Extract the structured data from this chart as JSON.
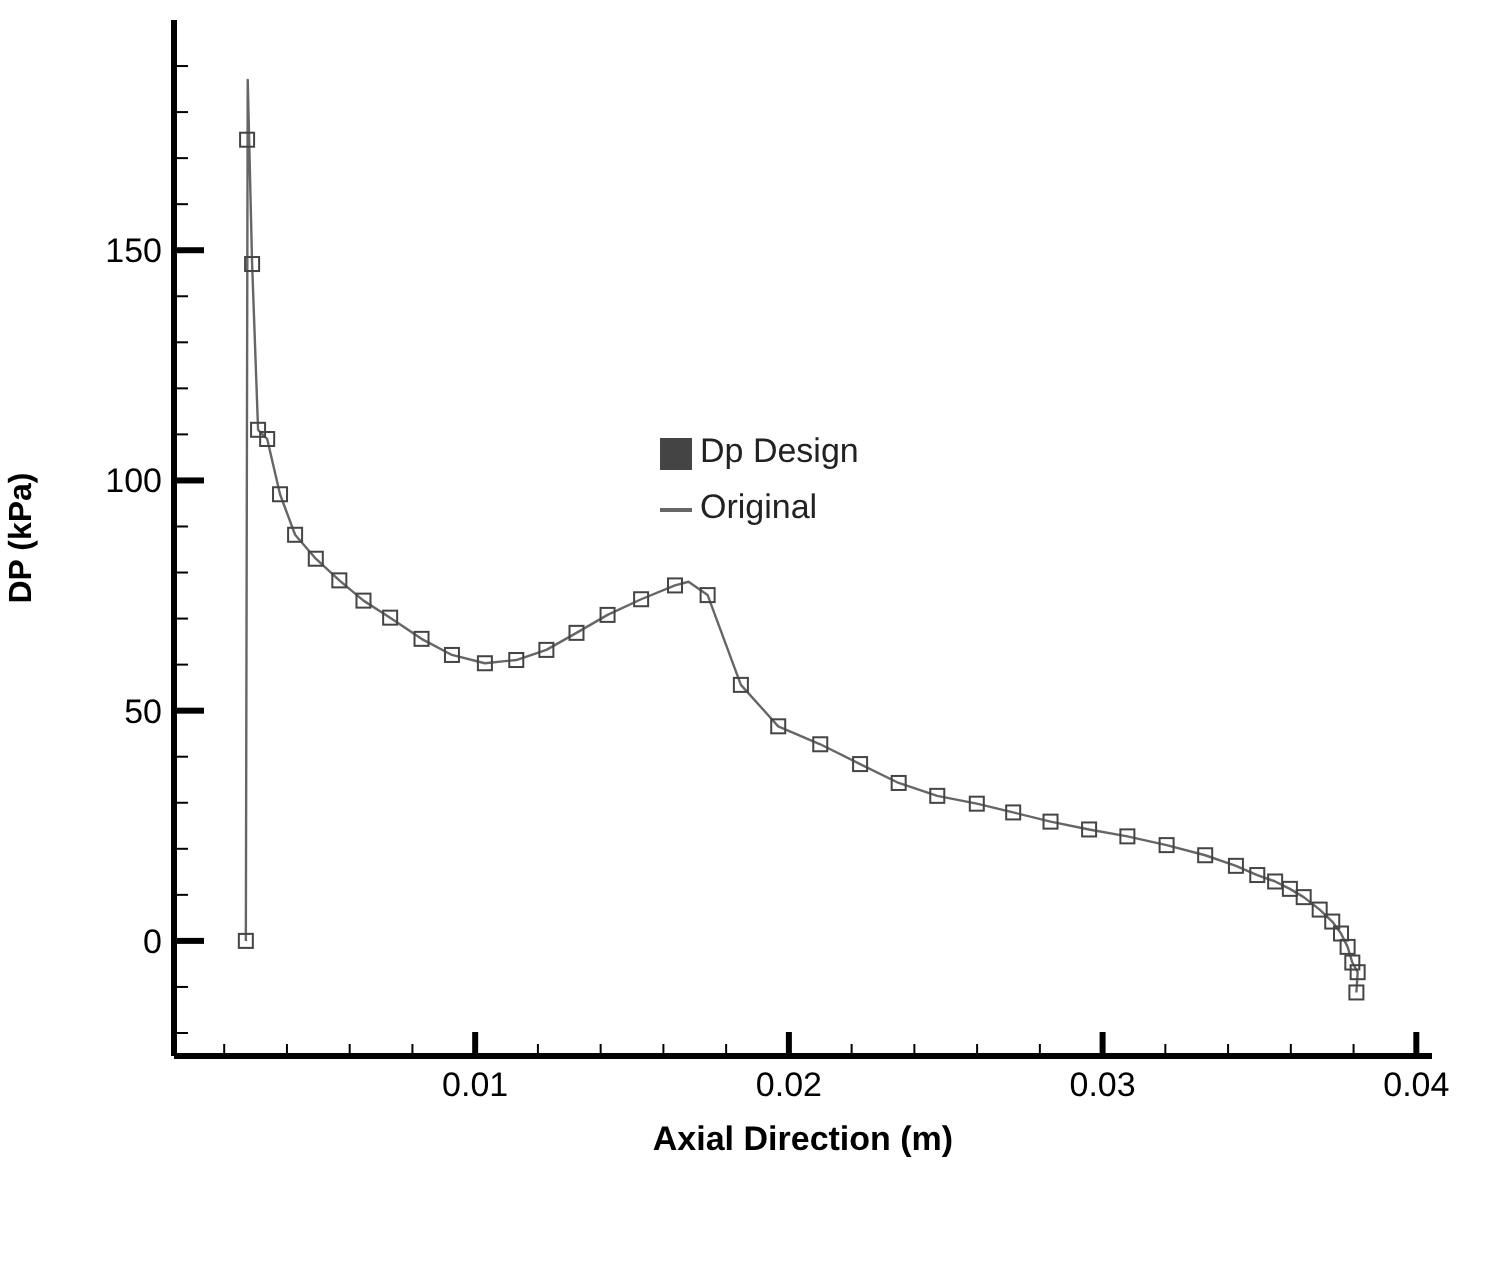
{
  "chart_data": {
    "type": "line",
    "xlabel": "Axial Direction (m)",
    "ylabel": "DP (kPa)",
    "xlim": [
      0.0004,
      0.0405
    ],
    "ylim": [
      -25,
      200
    ],
    "xticks": [
      {
        "value": 0.002,
        "label": null
      },
      {
        "value": 0.004,
        "label": null
      },
      {
        "value": 0.006,
        "label": null
      },
      {
        "value": 0.008,
        "label": null
      },
      0.01,
      {
        "value": 0.012,
        "label": null
      },
      {
        "value": 0.014,
        "label": null
      },
      {
        "value": 0.016,
        "label": null
      },
      {
        "value": 0.018,
        "label": null
      },
      0.02,
      {
        "value": 0.022,
        "label": null
      },
      {
        "value": 0.024,
        "label": null
      },
      {
        "value": 0.026,
        "label": null
      },
      {
        "value": 0.028,
        "label": null
      },
      0.03,
      {
        "value": 0.032,
        "label": null
      },
      {
        "value": 0.034,
        "label": null
      },
      {
        "value": 0.036,
        "label": null
      },
      {
        "value": 0.038,
        "label": null
      },
      0.04
    ],
    "yticks": [
      {
        "value": -20,
        "label": null
      },
      {
        "value": -10,
        "label": null
      },
      0,
      {
        "value": 10,
        "label": null
      },
      {
        "value": 20,
        "label": null
      },
      {
        "value": 30,
        "label": null
      },
      {
        "value": 40,
        "label": null
      },
      50,
      {
        "value": 60,
        "label": null
      },
      {
        "value": 70,
        "label": null
      },
      {
        "value": 80,
        "label": null
      },
      {
        "value": 90,
        "label": null
      },
      100,
      {
        "value": 110,
        "label": null
      },
      {
        "value": 120,
        "label": null
      },
      {
        "value": 130,
        "label": null
      },
      {
        "value": 140,
        "label": null
      },
      150,
      {
        "value": 160,
        "label": null
      },
      {
        "value": 170,
        "label": null
      },
      {
        "value": 180,
        "label": null
      },
      {
        "value": 190,
        "label": null
      }
    ],
    "grid": false,
    "legend": "top",
    "series": [
      {
        "name": "Original",
        "type": "line",
        "color": "#666666",
        "marker": "none",
        "x": [
          0.00269,
          0.00275,
          0.00289,
          0.00308,
          0.00337,
          0.00378,
          0.00426,
          0.00492,
          0.00567,
          0.00644,
          0.00729,
          0.00829,
          0.00926,
          0.01031,
          0.01131,
          0.01227,
          0.01323,
          0.01422,
          0.01529,
          0.01637,
          0.0168,
          0.01741,
          0.01847,
          0.01966,
          0.021,
          0.02227,
          0.0235,
          0.02473,
          0.02599,
          0.02715,
          0.02834,
          0.02957,
          0.03079,
          0.03204,
          0.03327,
          0.03425,
          0.03493,
          0.0355,
          0.03597,
          0.03641,
          0.03692,
          0.03732,
          0.0376,
          0.03781,
          0.03796,
          0.03813,
          0.03809
        ],
        "values": [
          0,
          187,
          147,
          111,
          109,
          97,
          88.2,
          83,
          78.3,
          73.9,
          70.2,
          65.6,
          62.1,
          60.3,
          61,
          63.2,
          66.9,
          70.8,
          74.2,
          77.2,
          78,
          75.1,
          55.6,
          46.6,
          42.7,
          38.4,
          34.3,
          31.5,
          29.8,
          27.9,
          25.9,
          24.2,
          22.7,
          20.8,
          18.6,
          16.3,
          14.3,
          12.9,
          11.3,
          9.5,
          6.8,
          4.2,
          1.6,
          -1.3,
          -4.7,
          -6.8,
          -11.2
        ]
      },
      {
        "name": "Dp Design",
        "type": "scatter",
        "color": "#444444",
        "marker": "square",
        "x": [
          0.00269,
          0.00273,
          0.00289,
          0.00308,
          0.00337,
          0.00378,
          0.00426,
          0.00492,
          0.00567,
          0.00644,
          0.00729,
          0.00829,
          0.00926,
          0.01031,
          0.01131,
          0.01227,
          0.01323,
          0.01422,
          0.01529,
          0.01637,
          0.01741,
          0.01847,
          0.01966,
          0.021,
          0.02227,
          0.0235,
          0.02473,
          0.02599,
          0.02715,
          0.02834,
          0.02957,
          0.03079,
          0.03204,
          0.03327,
          0.03425,
          0.03493,
          0.0355,
          0.03597,
          0.03641,
          0.03692,
          0.03732,
          0.0376,
          0.03781,
          0.03796,
          0.03813,
          0.03809
        ],
        "values": [
          0,
          174,
          147,
          111,
          109,
          97,
          88.2,
          83,
          78.3,
          73.9,
          70.2,
          65.6,
          62.1,
          60.3,
          61,
          63.2,
          66.9,
          70.8,
          74.2,
          77.2,
          75.1,
          55.6,
          46.6,
          42.7,
          38.4,
          34.3,
          31.5,
          29.8,
          27.9,
          25.9,
          24.2,
          22.7,
          20.8,
          18.6,
          16.3,
          14.3,
          12.9,
          11.3,
          9.5,
          6.8,
          4.2,
          1.6,
          -1.3,
          -4.7,
          -6.8,
          -11.2
        ]
      }
    ]
  }
}
